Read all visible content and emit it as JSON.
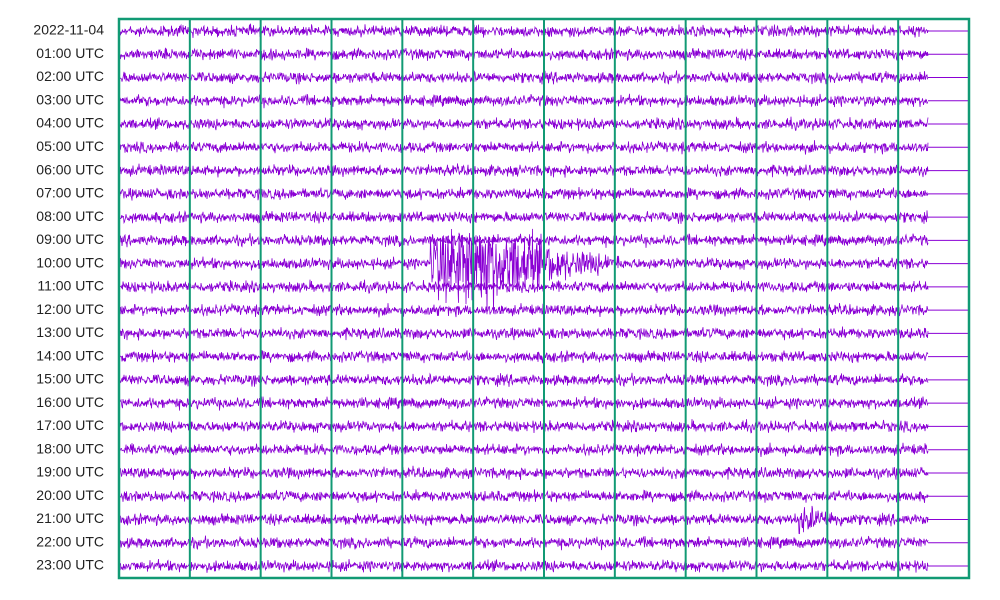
{
  "helicorder": {
    "row_labels": [
      "2022-11-04",
      "01:00 UTC",
      "02:00 UTC",
      "03:00 UTC",
      "04:00 UTC",
      "05:00 UTC",
      "06:00 UTC",
      "07:00 UTC",
      "08:00 UTC",
      "09:00 UTC",
      "10:00 UTC",
      "11:00 UTC",
      "12:00 UTC",
      "13:00 UTC",
      "14:00 UTC",
      "15:00 UTC",
      "16:00 UTC",
      "17:00 UTC",
      "18:00 UTC",
      "19:00 UTC",
      "20:00 UTC",
      "21:00 UTC",
      "22:00 UTC",
      "23:00 UTC"
    ]
  }
}
